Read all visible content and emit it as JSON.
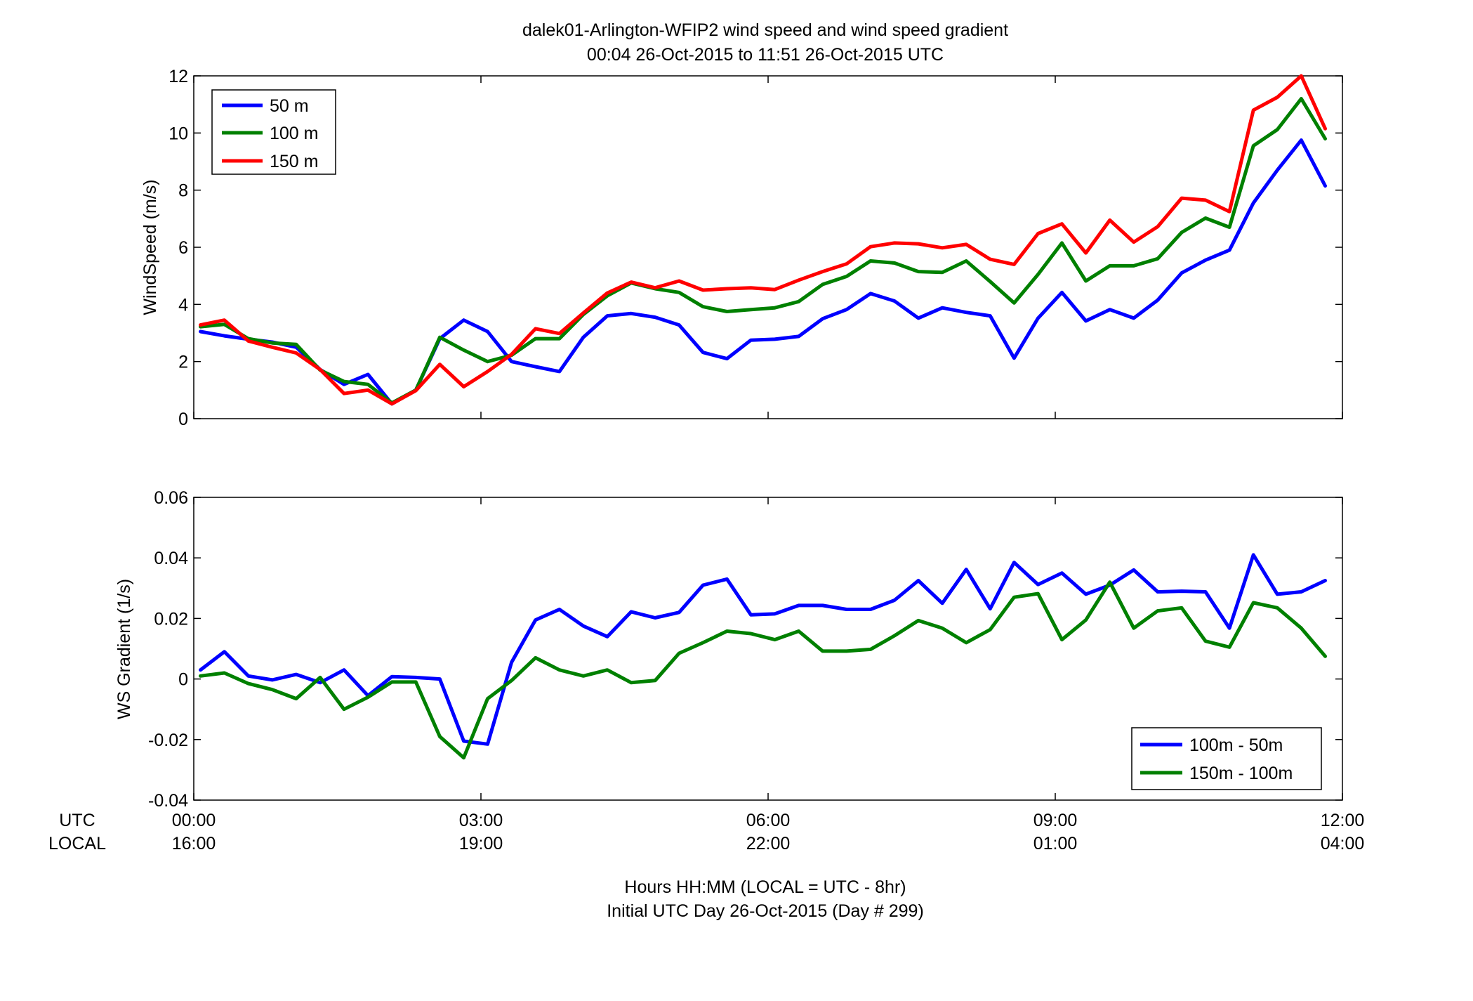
{
  "figure": {
    "title_line1": "dalek01-Arlington-WFIP2  wind speed and wind speed gradient",
    "title_line2": "00:04 26-Oct-2015 to 11:51 26-Oct-2015  UTC",
    "xlabel_line1": "Hours HH:MM  (LOCAL = UTC - 8hr)",
    "xlabel_line2": "Initial UTC Day 26-Oct-2015 (Day # 299)",
    "row_label_utc": "UTC",
    "row_label_local": "LOCAL"
  },
  "colors": {
    "blue": "#0000ff",
    "green": "#008000",
    "red": "#ff0000"
  },
  "chart_data": [
    {
      "type": "line",
      "ylabel": "WindSpeed (m/s)",
      "xlim": [
        0,
        12
      ],
      "ylim": [
        0,
        12
      ],
      "yticks": [
        "0",
        "2",
        "4",
        "6",
        "8",
        "10",
        "12"
      ],
      "xtick_values": [
        0,
        3,
        6,
        9,
        12
      ],
      "grid": false,
      "legend_position": "top-left",
      "x": [
        0.07,
        0.32,
        0.57,
        0.82,
        1.07,
        1.32,
        1.57,
        1.82,
        2.07,
        2.32,
        2.57,
        2.82,
        3.07,
        3.32,
        3.57,
        3.82,
        4.07,
        4.32,
        4.57,
        4.82,
        5.07,
        5.32,
        5.57,
        5.82,
        6.07,
        6.32,
        6.57,
        6.82,
        7.07,
        7.32,
        7.57,
        7.82,
        8.07,
        8.32,
        8.57,
        8.82,
        9.07,
        9.32,
        9.57,
        9.82,
        10.07,
        10.32,
        10.57,
        10.82,
        11.07,
        11.32,
        11.57,
        11.82
      ],
      "series": [
        {
          "name": "50 m",
          "color": "#0000ff",
          "values": [
            3.05,
            2.9,
            2.78,
            2.68,
            2.5,
            1.72,
            1.2,
            1.55,
            0.52,
            1.0,
            2.8,
            3.45,
            3.05,
            2.0,
            1.82,
            1.65,
            2.85,
            3.6,
            3.68,
            3.55,
            3.28,
            2.32,
            2.1,
            2.75,
            2.78,
            2.88,
            3.5,
            3.82,
            4.38,
            4.12,
            3.52,
            3.88,
            3.72,
            3.6,
            2.12,
            3.52,
            4.42,
            3.42,
            3.82,
            3.52,
            4.15,
            5.1,
            5.55,
            5.9,
            7.55,
            8.7,
            9.75,
            8.15
          ]
        },
        {
          "name": "100 m",
          "color": "#008000",
          "values": [
            3.22,
            3.3,
            2.8,
            2.65,
            2.6,
            1.7,
            1.3,
            1.2,
            0.55,
            1.0,
            2.85,
            2.4,
            2.0,
            2.22,
            2.8,
            2.8,
            3.65,
            4.3,
            4.75,
            4.55,
            4.42,
            3.92,
            3.75,
            3.82,
            3.88,
            4.1,
            4.7,
            4.98,
            5.52,
            5.45,
            5.15,
            5.12,
            5.52,
            4.8,
            4.05,
            5.05,
            6.15,
            4.82,
            5.35,
            5.35,
            5.6,
            6.52,
            7.02,
            6.7,
            9.55,
            10.12,
            11.2,
            9.8
          ]
        },
        {
          "name": "150 m",
          "color": "#ff0000",
          "values": [
            3.28,
            3.45,
            2.72,
            2.5,
            2.3,
            1.72,
            0.88,
            1.0,
            0.52,
            0.98,
            1.9,
            1.12,
            1.65,
            2.25,
            3.15,
            2.98,
            3.7,
            4.4,
            4.78,
            4.58,
            4.82,
            4.5,
            4.55,
            4.58,
            4.52,
            4.85,
            5.15,
            5.42,
            6.02,
            6.15,
            6.12,
            5.98,
            6.1,
            5.58,
            5.4,
            6.48,
            6.82,
            5.8,
            6.95,
            6.18,
            6.72,
            7.72,
            7.65,
            7.25,
            10.8,
            11.25,
            12.0,
            10.15
          ]
        }
      ]
    },
    {
      "type": "line",
      "ylabel": "WS Gradient (1/s)",
      "xlim": [
        0,
        12
      ],
      "ylim": [
        -0.04,
        0.06
      ],
      "yticks": [
        "-0.04",
        "-0.02",
        "0",
        "0.02",
        "0.04",
        "0.06"
      ],
      "xtick_values": [
        0,
        3,
        6,
        9,
        12
      ],
      "xticks_utc": [
        "00:00",
        "03:00",
        "06:00",
        "09:00",
        "12:00"
      ],
      "xticks_local": [
        "16:00",
        "19:00",
        "22:00",
        "01:00",
        "04:00"
      ],
      "grid": false,
      "legend_position": "bottom-right",
      "x": [
        0.07,
        0.32,
        0.57,
        0.82,
        1.07,
        1.32,
        1.57,
        1.82,
        2.07,
        2.32,
        2.57,
        2.82,
        3.07,
        3.32,
        3.57,
        3.82,
        4.07,
        4.32,
        4.57,
        4.82,
        5.07,
        5.32,
        5.57,
        5.82,
        6.07,
        6.32,
        6.57,
        6.82,
        7.07,
        7.32,
        7.57,
        7.82,
        8.07,
        8.32,
        8.57,
        8.82,
        9.07,
        9.32,
        9.57,
        9.82,
        10.07,
        10.32,
        10.57,
        10.82,
        11.07,
        11.32,
        11.57,
        11.82
      ],
      "series": [
        {
          "name": "100m - 50m",
          "color": "#0000ff",
          "values": [
            0.003,
            0.009,
            0.001,
            -0.0003,
            0.0015,
            -0.0012,
            0.003,
            -0.0055,
            0.0008,
            0.0005,
            0.0,
            -0.0205,
            -0.0215,
            0.0055,
            0.0195,
            0.023,
            0.0175,
            0.014,
            0.0222,
            0.0202,
            0.022,
            0.031,
            0.033,
            0.0212,
            0.0215,
            0.0243,
            0.0243,
            0.023,
            0.023,
            0.026,
            0.0325,
            0.025,
            0.0362,
            0.0232,
            0.0385,
            0.0312,
            0.035,
            0.028,
            0.031,
            0.036,
            0.0288,
            0.029,
            0.0288,
            0.0168,
            0.041,
            0.028,
            0.0288,
            0.0325
          ]
        },
        {
          "name": "150m - 100m",
          "color": "#008000",
          "values": [
            0.001,
            0.002,
            -0.0015,
            -0.0035,
            -0.0065,
            0.0005,
            -0.01,
            -0.006,
            -0.001,
            -0.001,
            -0.019,
            -0.026,
            -0.0065,
            -0.0005,
            0.007,
            0.003,
            0.001,
            0.003,
            -0.0012,
            -0.0005,
            0.0085,
            0.012,
            0.0158,
            0.015,
            0.013,
            0.0158,
            0.0092,
            0.0092,
            0.0098,
            0.0143,
            0.0193,
            0.0168,
            0.012,
            0.0163,
            0.027,
            0.0282,
            0.013,
            0.0195,
            0.032,
            0.0168,
            0.0225,
            0.0235,
            0.0125,
            0.0105,
            0.0252,
            0.0235,
            0.0168,
            0.0075
          ]
        }
      ]
    }
  ]
}
